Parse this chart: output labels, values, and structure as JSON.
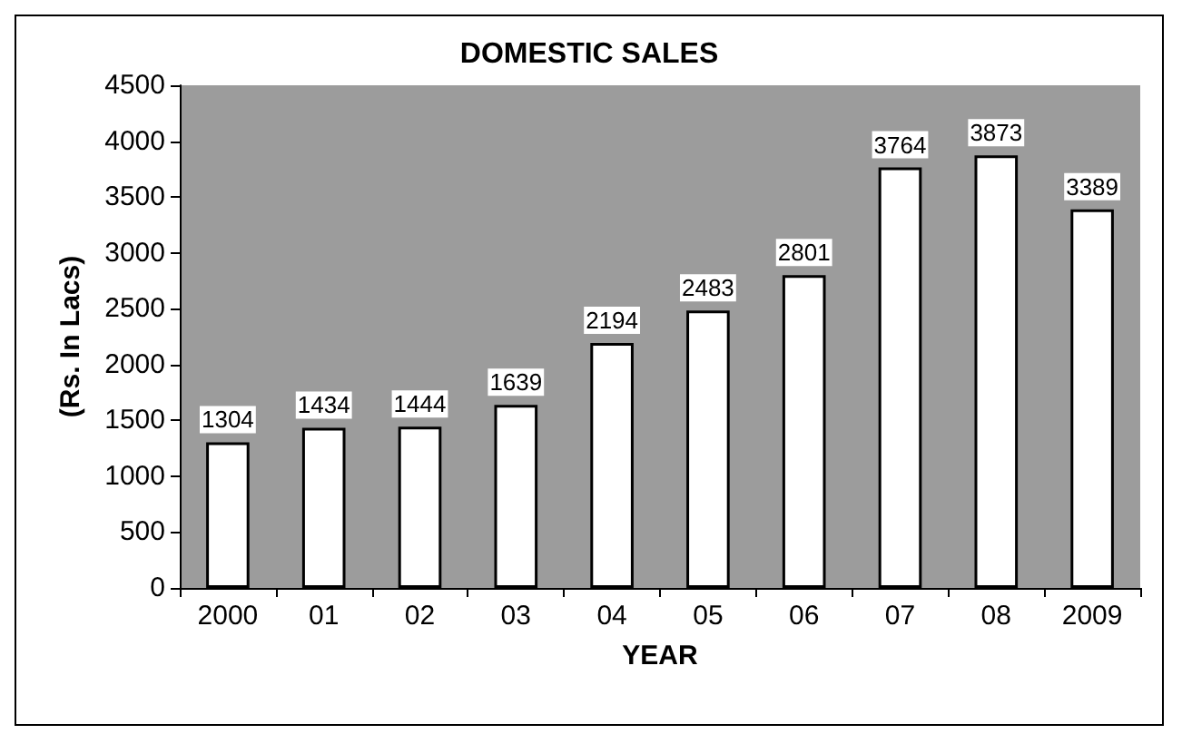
{
  "chart_data": {
    "type": "bar",
    "title": "DOMESTIC SALES",
    "xlabel": "YEAR",
    "ylabel": "(Rs. In Lacs)",
    "categories": [
      "2000",
      "01",
      "02",
      "03",
      "04",
      "05",
      "06",
      "07",
      "08",
      "2009"
    ],
    "values": [
      1304,
      1434,
      1444,
      1639,
      2194,
      2483,
      2801,
      3764,
      3873,
      3389
    ],
    "color": "#ffffff",
    "ylim": [
      0,
      4500
    ],
    "yticks": [
      0,
      500,
      1000,
      1500,
      2000,
      2500,
      3000,
      3500,
      4000,
      4500
    ],
    "grid": false,
    "data_labels": true
  }
}
